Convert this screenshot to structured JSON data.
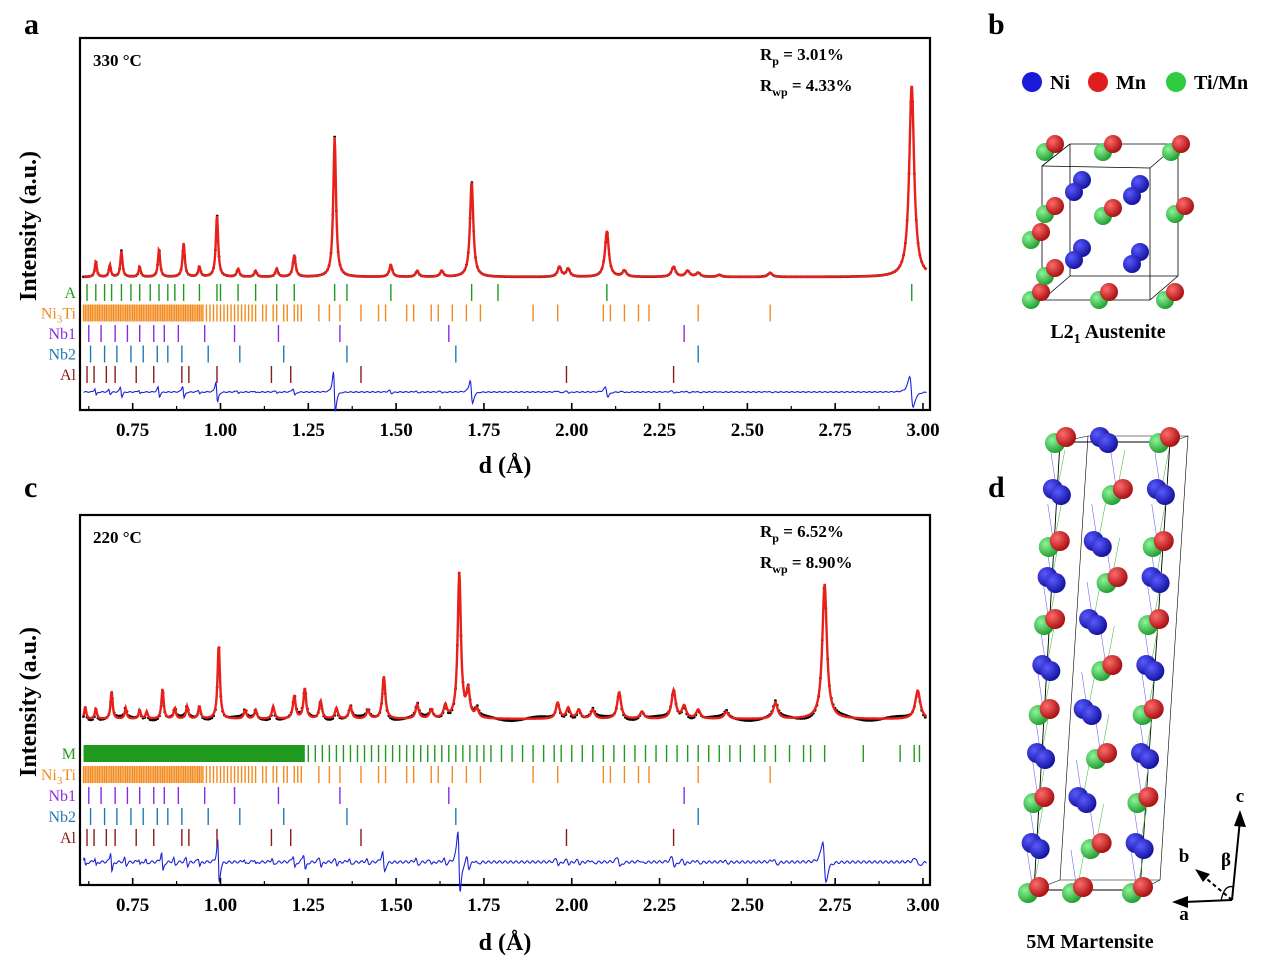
{
  "chart_data": [
    {
      "panel": "a",
      "type": "line",
      "temperature": "330 °C",
      "xlabel": "d (Å)",
      "ylabel": "Intensity (a.u.)",
      "xlim": [
        0.6,
        3.02
      ],
      "xticks": [
        "0.75",
        "1.00",
        "1.25",
        "1.50",
        "1.75",
        "2.00",
        "2.25",
        "2.50",
        "2.75",
        "3.00"
      ],
      "rp": {
        "sym": "R",
        "sub": "p",
        "val": " = 3.01%"
      },
      "rwp": {
        "sym": "R",
        "sub": "wp",
        "val": " = 4.33%"
      },
      "background": 0.0,
      "peaks": [
        {
          "d": 0.645,
          "h": 0.08
        },
        {
          "d": 0.685,
          "h": 0.06
        },
        {
          "d": 0.718,
          "h": 0.13
        },
        {
          "d": 0.77,
          "h": 0.05
        },
        {
          "d": 0.825,
          "h": 0.14
        },
        {
          "d": 0.895,
          "h": 0.17
        },
        {
          "d": 0.94,
          "h": 0.05
        },
        {
          "d": 0.99,
          "h": 0.31
        },
        {
          "d": 1.05,
          "h": 0.04
        },
        {
          "d": 1.1,
          "h": 0.03
        },
        {
          "d": 1.16,
          "h": 0.04
        },
        {
          "d": 1.21,
          "h": 0.11
        },
        {
          "d": 1.325,
          "h": 0.7
        },
        {
          "d": 1.485,
          "h": 0.06
        },
        {
          "d": 1.56,
          "h": 0.03
        },
        {
          "d": 1.63,
          "h": 0.03
        },
        {
          "d": 1.715,
          "h": 0.48
        },
        {
          "d": 1.965,
          "h": 0.05
        },
        {
          "d": 1.99,
          "h": 0.04
        },
        {
          "d": 2.1,
          "h": 0.23
        },
        {
          "d": 2.15,
          "h": 0.03
        },
        {
          "d": 2.29,
          "h": 0.05
        },
        {
          "d": 2.33,
          "h": 0.03
        },
        {
          "d": 2.36,
          "h": 0.02
        },
        {
          "d": 2.42,
          "h": 0.01
        },
        {
          "d": 2.565,
          "h": 0.02
        },
        {
          "d": 2.968,
          "h": 0.96
        }
      ],
      "phases": [
        {
          "name": "A",
          "name_sub": "",
          "name_end": "",
          "color": "#1f9a1f",
          "ticks": [
            0.62,
            0.645,
            0.67,
            0.69,
            0.718,
            0.745,
            0.77,
            0.8,
            0.825,
            0.85,
            0.87,
            0.895,
            0.94,
            0.99,
            1.0,
            1.05,
            1.1,
            1.16,
            1.21,
            1.325,
            1.36,
            1.485,
            1.715,
            1.79,
            2.1,
            2.968
          ]
        },
        {
          "name": "Ni",
          "name_sub": "3",
          "name_end": "Ti",
          "color": "#f28a1e",
          "ticks": [
            0.61,
            0.615,
            0.62,
            0.625,
            0.63,
            0.635,
            0.64,
            0.645,
            0.65,
            0.655,
            0.66,
            0.665,
            0.67,
            0.675,
            0.68,
            0.685,
            0.69,
            0.695,
            0.7,
            0.705,
            0.71,
            0.715,
            0.72,
            0.725,
            0.73,
            0.735,
            0.74,
            0.745,
            0.75,
            0.755,
            0.76,
            0.765,
            0.77,
            0.775,
            0.78,
            0.785,
            0.79,
            0.795,
            0.8,
            0.805,
            0.81,
            0.815,
            0.82,
            0.825,
            0.83,
            0.835,
            0.84,
            0.845,
            0.85,
            0.855,
            0.86,
            0.865,
            0.87,
            0.875,
            0.88,
            0.885,
            0.89,
            0.895,
            0.9,
            0.905,
            0.91,
            0.915,
            0.92,
            0.925,
            0.93,
            0.935,
            0.94,
            0.945,
            0.95,
            0.96,
            0.97,
            0.98,
            0.99,
            1.0,
            1.01,
            1.02,
            1.03,
            1.04,
            1.05,
            1.06,
            1.07,
            1.08,
            1.09,
            1.1,
            1.12,
            1.13,
            1.15,
            1.16,
            1.18,
            1.19,
            1.21,
            1.22,
            1.23,
            1.28,
            1.31,
            1.34,
            1.4,
            1.45,
            1.47,
            1.53,
            1.55,
            1.6,
            1.62,
            1.66,
            1.7,
            1.74,
            1.89,
            1.96,
            2.09,
            2.11,
            2.15,
            2.19,
            2.22,
            2.36,
            2.565
          ]
        },
        {
          "name": "Nb1",
          "name_sub": "",
          "name_end": "",
          "color": "#8a2be2",
          "ticks": [
            0.625,
            0.66,
            0.7,
            0.735,
            0.77,
            0.81,
            0.84,
            0.88,
            0.955,
            1.04,
            1.165,
            1.34,
            1.65,
            2.32
          ]
        },
        {
          "name": "Nb2",
          "name_sub": "",
          "name_end": "",
          "color": "#1f7ab4",
          "ticks": [
            0.63,
            0.67,
            0.705,
            0.745,
            0.78,
            0.82,
            0.85,
            0.89,
            0.965,
            1.055,
            1.18,
            1.36,
            1.67,
            2.36
          ]
        },
        {
          "name": "Al",
          "name_sub": "",
          "name_end": "",
          "color": "#8b1a1a",
          "ticks": [
            0.62,
            0.64,
            0.675,
            0.7,
            0.76,
            0.81,
            0.89,
            0.91,
            0.99,
            1.145,
            1.2,
            1.4,
            1.985,
            2.29
          ]
        }
      ]
    },
    {
      "panel": "c",
      "type": "line",
      "temperature": "220 °C",
      "xlabel": "d (Å)",
      "ylabel": "Intensity (a.u.)",
      "xlim": [
        0.6,
        3.02
      ],
      "xticks": [
        "0.75",
        "1.00",
        "1.25",
        "1.50",
        "1.75",
        "2.00",
        "2.25",
        "2.50",
        "2.75",
        "3.00"
      ],
      "rp": {
        "sym": "R",
        "sub": "p",
        "val": " = 6.52%"
      },
      "rwp": {
        "sym": "R",
        "sub": "wp",
        "val": " = 8.90%"
      },
      "background": 0.05,
      "peaks": [
        {
          "d": 0.615,
          "h": 0.07
        },
        {
          "d": 0.645,
          "h": 0.06
        },
        {
          "d": 0.69,
          "h": 0.16
        },
        {
          "d": 0.73,
          "h": 0.06
        },
        {
          "d": 0.77,
          "h": 0.05
        },
        {
          "d": 0.79,
          "h": 0.04
        },
        {
          "d": 0.835,
          "h": 0.17
        },
        {
          "d": 0.87,
          "h": 0.06
        },
        {
          "d": 0.905,
          "h": 0.07
        },
        {
          "d": 0.94,
          "h": 0.07
        },
        {
          "d": 0.995,
          "h": 0.42
        },
        {
          "d": 1.07,
          "h": 0.05
        },
        {
          "d": 1.1,
          "h": 0.05
        },
        {
          "d": 1.15,
          "h": 0.07
        },
        {
          "d": 1.21,
          "h": 0.13
        },
        {
          "d": 1.24,
          "h": 0.17
        },
        {
          "d": 1.285,
          "h": 0.1
        },
        {
          "d": 1.33,
          "h": 0.06
        },
        {
          "d": 1.37,
          "h": 0.07
        },
        {
          "d": 1.42,
          "h": 0.05
        },
        {
          "d": 1.465,
          "h": 0.24
        },
        {
          "d": 1.56,
          "h": 0.08
        },
        {
          "d": 1.6,
          "h": 0.05
        },
        {
          "d": 1.64,
          "h": 0.07
        },
        {
          "d": 1.68,
          "h": 0.82
        },
        {
          "d": 1.705,
          "h": 0.15
        },
        {
          "d": 1.73,
          "h": 0.05
        },
        {
          "d": 1.96,
          "h": 0.09
        },
        {
          "d": 1.99,
          "h": 0.06
        },
        {
          "d": 2.02,
          "h": 0.05
        },
        {
          "d": 2.06,
          "h": 0.05
        },
        {
          "d": 2.135,
          "h": 0.15
        },
        {
          "d": 2.2,
          "h": 0.04
        },
        {
          "d": 2.29,
          "h": 0.16
        },
        {
          "d": 2.32,
          "h": 0.07
        },
        {
          "d": 2.36,
          "h": 0.05
        },
        {
          "d": 2.44,
          "h": 0.04
        },
        {
          "d": 2.58,
          "h": 0.09
        },
        {
          "d": 2.72,
          "h": 0.76
        },
        {
          "d": 2.985,
          "h": 0.16
        }
      ],
      "phases": [
        {
          "name": "M",
          "name_sub": "",
          "name_end": "",
          "color": "#1f9a1f",
          "dense_until": 1.24,
          "ticks": [
            1.25,
            1.27,
            1.29,
            1.31,
            1.33,
            1.35,
            1.37,
            1.39,
            1.41,
            1.43,
            1.45,
            1.47,
            1.49,
            1.51,
            1.53,
            1.55,
            1.57,
            1.59,
            1.61,
            1.63,
            1.65,
            1.67,
            1.69,
            1.71,
            1.73,
            1.75,
            1.77,
            1.8,
            1.83,
            1.86,
            1.89,
            1.92,
            1.95,
            1.97,
            2.0,
            2.03,
            2.06,
            2.09,
            2.12,
            2.15,
            2.18,
            2.21,
            2.24,
            2.27,
            2.3,
            2.33,
            2.36,
            2.39,
            2.42,
            2.45,
            2.48,
            2.52,
            2.55,
            2.58,
            2.62,
            2.66,
            2.68,
            2.72,
            2.83,
            2.935,
            2.975,
            2.99
          ]
        },
        {
          "name": "Ni",
          "name_sub": "3",
          "name_end": "Ti",
          "color": "#f28a1e",
          "ticks": [
            0.61,
            0.615,
            0.62,
            0.625,
            0.63,
            0.635,
            0.64,
            0.645,
            0.65,
            0.655,
            0.66,
            0.665,
            0.67,
            0.675,
            0.68,
            0.685,
            0.69,
            0.695,
            0.7,
            0.705,
            0.71,
            0.715,
            0.72,
            0.725,
            0.73,
            0.735,
            0.74,
            0.745,
            0.75,
            0.755,
            0.76,
            0.765,
            0.77,
            0.775,
            0.78,
            0.785,
            0.79,
            0.795,
            0.8,
            0.805,
            0.81,
            0.815,
            0.82,
            0.825,
            0.83,
            0.835,
            0.84,
            0.845,
            0.85,
            0.855,
            0.86,
            0.865,
            0.87,
            0.875,
            0.88,
            0.885,
            0.89,
            0.895,
            0.9,
            0.905,
            0.91,
            0.915,
            0.92,
            0.925,
            0.93,
            0.935,
            0.94,
            0.945,
            0.95,
            0.96,
            0.97,
            0.98,
            0.99,
            1.0,
            1.01,
            1.02,
            1.03,
            1.04,
            1.05,
            1.06,
            1.07,
            1.08,
            1.09,
            1.1,
            1.12,
            1.13,
            1.15,
            1.16,
            1.18,
            1.19,
            1.21,
            1.22,
            1.23,
            1.28,
            1.31,
            1.34,
            1.4,
            1.45,
            1.47,
            1.53,
            1.55,
            1.6,
            1.62,
            1.66,
            1.7,
            1.74,
            1.89,
            1.96,
            2.09,
            2.11,
            2.15,
            2.19,
            2.22,
            2.36,
            2.565
          ]
        },
        {
          "name": "Nb1",
          "name_sub": "",
          "name_end": "",
          "color": "#8a2be2",
          "ticks": [
            0.625,
            0.66,
            0.7,
            0.735,
            0.77,
            0.81,
            0.84,
            0.88,
            0.955,
            1.04,
            1.165,
            1.34,
            1.65,
            2.32
          ]
        },
        {
          "name": "Nb2",
          "name_sub": "",
          "name_end": "",
          "color": "#1f7ab4",
          "ticks": [
            0.63,
            0.67,
            0.705,
            0.745,
            0.78,
            0.82,
            0.85,
            0.89,
            0.965,
            1.055,
            1.18,
            1.36,
            1.67,
            2.36
          ]
        },
        {
          "name": "Al",
          "name_sub": "",
          "name_end": "",
          "color": "#8b1a1a",
          "ticks": [
            0.62,
            0.64,
            0.675,
            0.7,
            0.76,
            0.81,
            0.89,
            0.91,
            0.99,
            1.145,
            1.2,
            1.4,
            1.985,
            2.29
          ]
        }
      ]
    }
  ],
  "labels": {
    "panel_a": "a",
    "panel_b": "b",
    "panel_c": "c",
    "panel_d": "d",
    "austenite": {
      "pre": "L2",
      "sub": "1",
      "post": " Austenite"
    },
    "martensite": "5M Martensite",
    "legend": [
      {
        "name": "Ni",
        "color": "#1a1adb"
      },
      {
        "name": "Mn",
        "color": "#e01e1e"
      },
      {
        "name": "Ti/Mn",
        "color": "#2ecc40"
      }
    ],
    "axes": {
      "a": "a",
      "b": "b",
      "c": "c",
      "beta": "β"
    }
  },
  "colors": {
    "observed": "#000000",
    "calculated": "#e8201a",
    "difference": "#1b22d8"
  }
}
